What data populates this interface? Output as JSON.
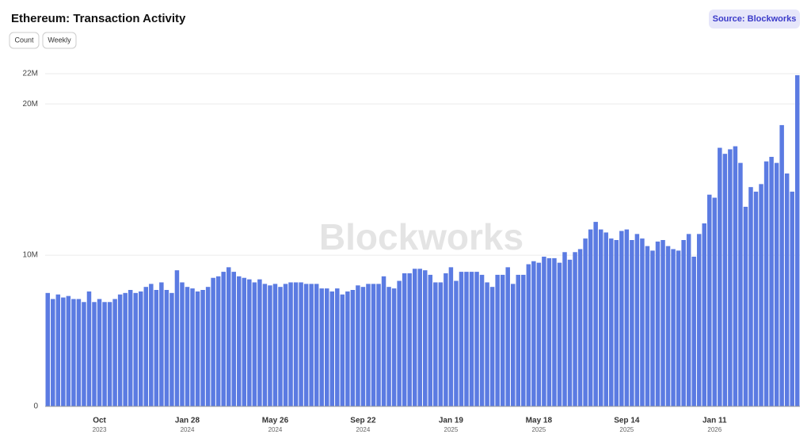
{
  "chart_data": {
    "type": "bar",
    "title": "Ethereum: Transaction Activity",
    "buttons": [
      "Count",
      "Weekly"
    ],
    "source": "Source: Blockworks",
    "watermark": "Blockworks",
    "color": "#5b7be2",
    "grid": true,
    "ylim": [
      0,
      22
    ],
    "yticks": [
      0,
      {
        "value": 10,
        "label": "10M"
      },
      {
        "value": 20,
        "label": "20M"
      },
      {
        "value": 22,
        "label": "22M"
      }
    ],
    "categories": [
      null,
      null,
      null,
      null,
      null,
      null,
      null,
      null,
      null,
      null,
      "Oct",
      null,
      null,
      null,
      null,
      null,
      null,
      null,
      null,
      null,
      null,
      null,
      null,
      null,
      null,
      null,
      null,
      "Jan 28",
      null,
      null,
      null,
      null,
      null,
      null,
      null,
      null,
      null,
      null,
      null,
      null,
      null,
      null,
      null,
      null,
      "May 26",
      null,
      null,
      null,
      null,
      null,
      null,
      null,
      null,
      null,
      null,
      null,
      null,
      null,
      null,
      null,
      null,
      "Sep 22",
      null,
      null,
      null,
      null,
      null,
      null,
      null,
      null,
      null,
      null,
      null,
      null,
      null,
      null,
      null,
      null,
      "Jan 19",
      null,
      null,
      null,
      null,
      null,
      null,
      null,
      null,
      null,
      null,
      null,
      null,
      null,
      null,
      null,
      null,
      "May 18",
      null,
      null,
      null,
      null,
      null,
      null,
      null,
      null,
      null,
      null,
      null,
      null,
      null,
      null,
      null,
      null,
      "Sep 14",
      null,
      null,
      null,
      null,
      null,
      null,
      null,
      null,
      null,
      null,
      null,
      null,
      null,
      null,
      null,
      null,
      "Jan 11",
      null,
      null,
      null,
      null,
      null,
      null,
      null,
      null,
      null,
      null,
      null,
      null,
      null,
      null,
      null,
      null
    ],
    "category_years": [
      null,
      null,
      null,
      null,
      null,
      null,
      null,
      null,
      null,
      null,
      "2023",
      null,
      null,
      null,
      null,
      null,
      null,
      null,
      null,
      null,
      null,
      null,
      null,
      null,
      null,
      null,
      null,
      "2024",
      null,
      null,
      null,
      null,
      null,
      null,
      null,
      null,
      null,
      null,
      null,
      null,
      null,
      null,
      null,
      null,
      "2024",
      null,
      null,
      null,
      null,
      null,
      null,
      null,
      null,
      null,
      null,
      null,
      null,
      null,
      null,
      null,
      null,
      "2024",
      null,
      null,
      null,
      null,
      null,
      null,
      null,
      null,
      null,
      null,
      null,
      null,
      null,
      null,
      null,
      null,
      "2025",
      null,
      null,
      null,
      null,
      null,
      null,
      null,
      null,
      null,
      null,
      null,
      null,
      null,
      null,
      null,
      null,
      "2025",
      null,
      null,
      null,
      null,
      null,
      null,
      null,
      null,
      null,
      null,
      null,
      null,
      null,
      null,
      null,
      null,
      "2025",
      null,
      null,
      null,
      null,
      null,
      null,
      null,
      null,
      null,
      null,
      null,
      null,
      null,
      null,
      null,
      null,
      "2026",
      null,
      null,
      null,
      null,
      null,
      null,
      null,
      null,
      null,
      null,
      null,
      null,
      null,
      null,
      null,
      null
    ],
    "values": [
      7.5,
      7.1,
      7.4,
      7.2,
      7.3,
      7.1,
      7.1,
      6.9,
      7.6,
      6.9,
      7.1,
      6.9,
      6.9,
      7.1,
      7.4,
      7.5,
      7.7,
      7.5,
      7.6,
      7.9,
      8.1,
      7.7,
      8.2,
      7.7,
      7.5,
      9.0,
      8.2,
      7.9,
      7.8,
      7.6,
      7.7,
      7.9,
      8.5,
      8.6,
      8.9,
      9.2,
      8.9,
      8.6,
      8.5,
      8.4,
      8.2,
      8.4,
      8.1,
      8.0,
      8.1,
      7.9,
      8.1,
      8.2,
      8.2,
      8.2,
      8.1,
      8.1,
      8.1,
      7.8,
      7.8,
      7.6,
      7.8,
      7.4,
      7.6,
      7.7,
      8.0,
      7.9,
      8.1,
      8.1,
      8.1,
      8.6,
      7.9,
      7.8,
      8.3,
      8.8,
      8.8,
      9.1,
      9.1,
      9.0,
      8.7,
      8.2,
      8.2,
      8.8,
      9.2,
      8.3,
      8.9,
      8.9,
      8.9,
      8.9,
      8.7,
      8.2,
      7.9,
      8.7,
      8.7,
      9.2,
      8.1,
      8.7,
      8.7,
      9.4,
      9.6,
      9.5,
      9.9,
      9.8,
      9.8,
      9.5,
      10.2,
      9.7,
      10.2,
      10.4,
      11.1,
      11.7,
      12.2,
      11.7,
      11.5,
      11.1,
      11.0,
      11.6,
      11.7,
      11.0,
      11.4,
      11.1,
      10.6,
      10.3,
      10.9,
      11.0,
      10.6,
      10.4,
      10.3,
      11.0,
      11.4,
      9.9,
      11.4,
      12.1,
      14.0,
      13.8,
      17.1,
      16.7,
      17.0,
      17.2,
      16.1,
      13.2,
      14.5,
      14.2,
      14.7,
      16.2,
      16.5,
      16.1,
      18.6,
      15.4,
      14.2,
      21.9
    ]
  }
}
